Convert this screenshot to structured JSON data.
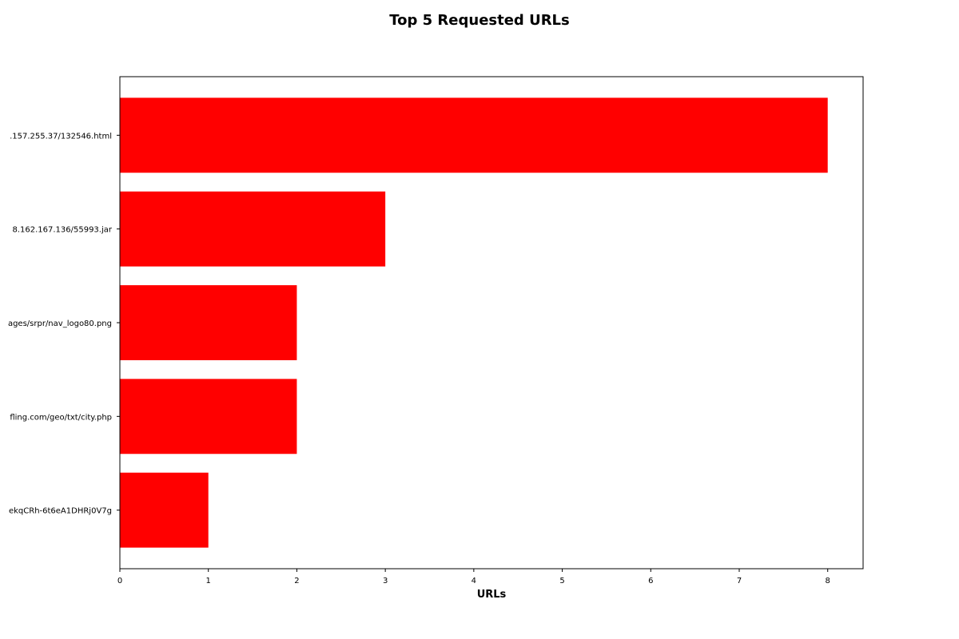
{
  "chart_data": {
    "type": "bar",
    "orientation": "horizontal",
    "title": "Top 5 Requested URLs",
    "xlabel": "URLs",
    "ylabel": "",
    "xlim": [
      0,
      8.4
    ],
    "xticks": [
      0,
      1,
      2,
      3,
      4,
      5,
      6,
      7,
      8
    ],
    "categories": [
      ".157.255.37/132546.html",
      "8.162.167.136/55993.jar",
      "ages/srpr/nav_logo80.png",
      "fling.com/geo/txt/city.php",
      "ekqCRh-6t6eA1DHRj0V7g"
    ],
    "values": [
      8,
      3,
      2,
      2,
      1
    ],
    "bar_color": "#ff0000",
    "grid": false,
    "legend": "none"
  }
}
